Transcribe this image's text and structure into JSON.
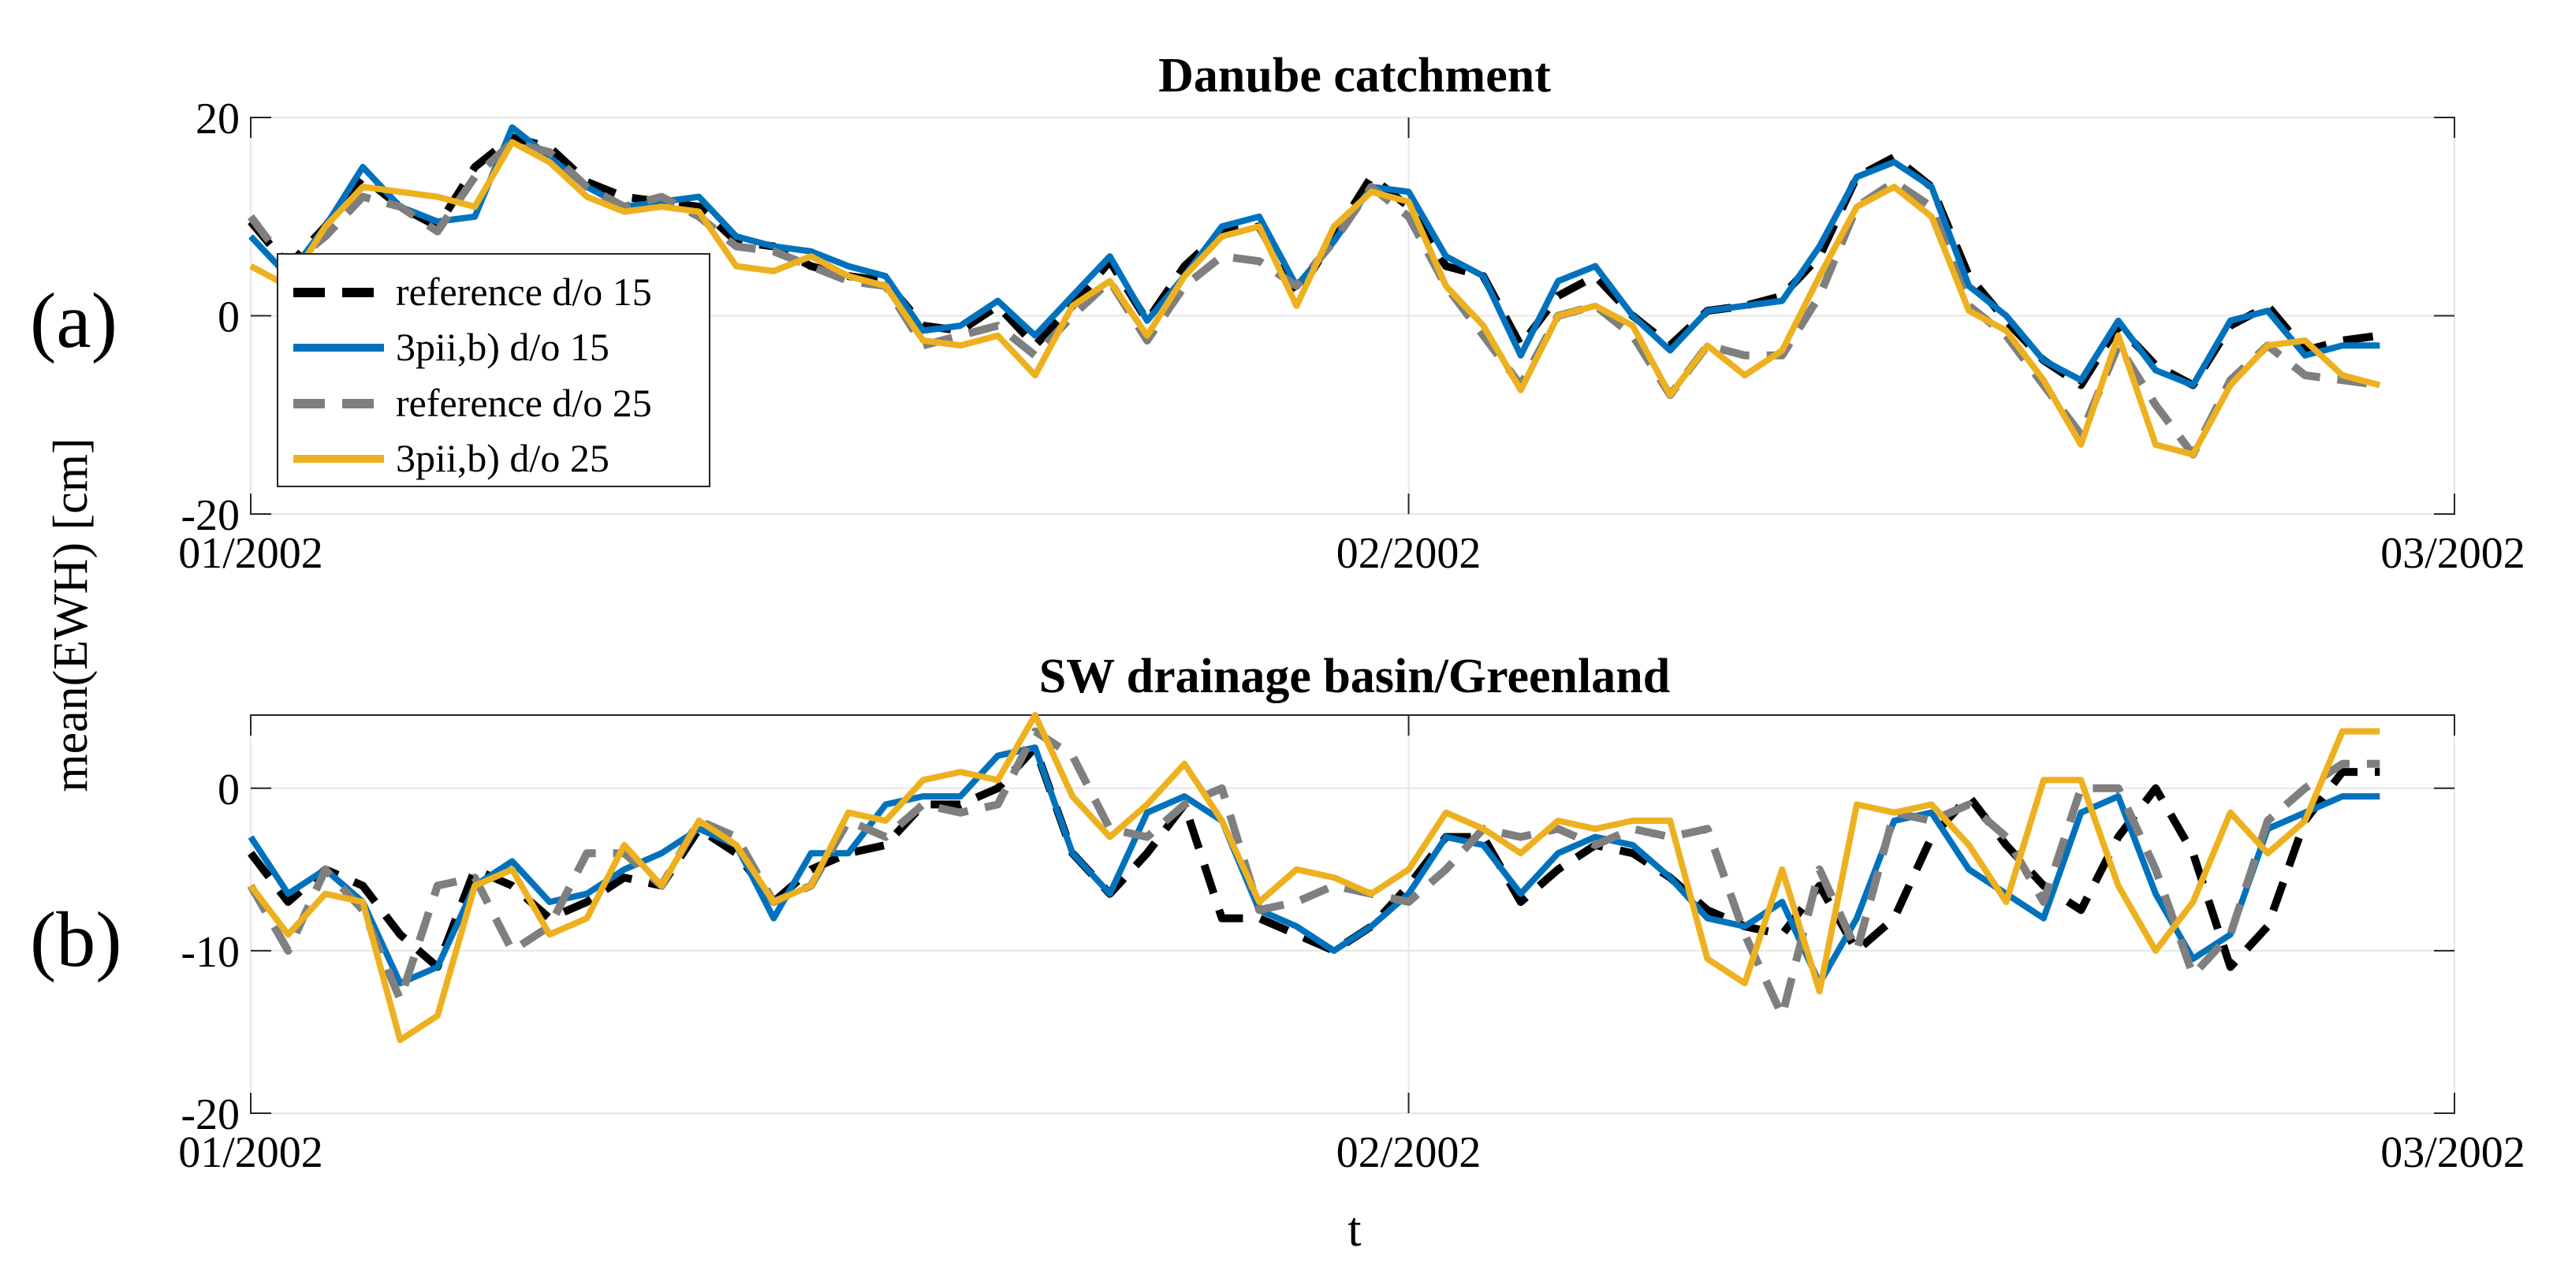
{
  "chart_data": [
    {
      "type": "line",
      "panel_label": "(a)",
      "title": "Danube catchment",
      "xlabel": "",
      "ylabel": "",
      "ylim": [
        -20,
        20
      ],
      "yticks": [
        -20,
        0,
        20
      ],
      "ytick_labels": [
        "-20",
        "0",
        "20"
      ],
      "x_range_days": [
        0,
        57
      ],
      "xticks_days": [
        0,
        31,
        59
      ],
      "xtick_labels": [
        "01/2002",
        "02/2002",
        "03/2002"
      ],
      "grid": true,
      "legend": {
        "position": "left",
        "entries": [
          "reference d/o 15",
          "3pii,b) d/o 15",
          "reference d/o 25",
          "3pii,b) d/o 25"
        ]
      },
      "x": [
        0,
        1,
        2,
        3,
        4,
        5,
        6,
        7,
        8,
        9,
        10,
        11,
        12,
        13,
        14,
        15,
        16,
        17,
        18,
        19,
        20,
        21,
        22,
        23,
        24,
        25,
        26,
        27,
        28,
        29,
        30,
        31,
        32,
        33,
        34,
        35,
        36,
        37,
        38,
        39,
        40,
        41,
        42,
        43,
        44,
        45,
        46,
        47,
        48,
        49,
        50,
        51,
        52,
        53,
        54,
        55,
        56,
        57
      ],
      "series": [
        {
          "name": "reference d/o 15",
          "color": "#000000",
          "dash": true,
          "values": [
            9.5,
            5,
            9,
            14,
            11,
            9,
            15,
            18,
            17,
            13.5,
            12,
            11.5,
            11,
            7.5,
            7,
            5,
            4,
            3.5,
            -1,
            -1.5,
            1,
            -3,
            1,
            5.5,
            -0.5,
            5,
            8.5,
            9,
            2,
            8,
            14,
            11,
            5,
            4,
            -3,
            2,
            4,
            0,
            -3,
            0.5,
            1,
            2,
            6,
            14,
            16,
            13,
            4,
            -0.5,
            -4.5,
            -7,
            -1,
            -5,
            -7,
            -1,
            1,
            -3.5,
            -2.5,
            -2
          ]
        },
        {
          "name": "3pii,b) d/o 15",
          "color": "#0072BD",
          "dash": false,
          "values": [
            8,
            4,
            9,
            15,
            11,
            9.5,
            10,
            19,
            16,
            13,
            11,
            11.5,
            12,
            8,
            7,
            6.5,
            5,
            4,
            -1.5,
            -1,
            1.5,
            -2,
            2,
            6,
            -0.5,
            4,
            9,
            10,
            3,
            7.5,
            13,
            12.5,
            6,
            4,
            -4,
            3.5,
            5,
            0,
            -3.5,
            0.5,
            1,
            1.5,
            7,
            14,
            15.5,
            13,
            3,
            0,
            -4.5,
            -6.5,
            -0.5,
            -5.5,
            -7,
            -0.5,
            0.5,
            -4,
            -3,
            -3
          ]
        },
        {
          "name": "reference d/o 25",
          "color": "#7F7F7F",
          "dash": true,
          "values": [
            10,
            5,
            8,
            12,
            11,
            8.5,
            14,
            17.5,
            16.5,
            13,
            11,
            12,
            10,
            7,
            6.5,
            5,
            3.5,
            3,
            -3,
            -2,
            -1,
            -4,
            0,
            3.5,
            -2.5,
            3,
            6,
            5.5,
            3,
            7.5,
            13,
            10,
            3,
            -2,
            -7,
            0,
            1,
            -2,
            -8,
            -3,
            -4,
            -4,
            2,
            11,
            13.5,
            11,
            1,
            -2,
            -7,
            -12,
            -3,
            -9,
            -14,
            -6.5,
            -3,
            -6,
            -6.5,
            -7
          ]
        },
        {
          "name": "3pii,b) d/o 25",
          "color": "#EDB120",
          "dash": false,
          "values": [
            5,
            3,
            9,
            13,
            12.5,
            12,
            11,
            17.5,
            15.5,
            12,
            10.5,
            11,
            10.5,
            5,
            4.5,
            6,
            4,
            3,
            -2.5,
            -3,
            -2,
            -6,
            1,
            3.5,
            -2,
            4,
            8,
            9,
            1,
            9,
            12.5,
            11.5,
            3,
            -1,
            -7.5,
            0,
            1,
            -1,
            -8,
            -3,
            -6,
            -3.5,
            4,
            11,
            13,
            10,
            0.5,
            -1.5,
            -6.5,
            -13,
            -2,
            -13,
            -14,
            -7,
            -3,
            -2.5,
            -6,
            -7
          ]
        }
      ]
    },
    {
      "type": "line",
      "panel_label": "(b)",
      "title": "SW drainage basin/Greenland",
      "xlabel": "t",
      "ylabel": "mean(EWH) [cm]",
      "ylim": [
        -20,
        4.5
      ],
      "yticks": [
        -20,
        -10,
        0
      ],
      "ytick_labels": [
        "-20",
        "-10",
        "0"
      ],
      "x_range_days": [
        0,
        57
      ],
      "xticks_days": [
        0,
        31,
        59
      ],
      "xtick_labels": [
        "01/2002",
        "02/2002",
        "03/2002"
      ],
      "grid": true,
      "x": [
        0,
        1,
        2,
        3,
        4,
        5,
        6,
        7,
        8,
        9,
        10,
        11,
        12,
        13,
        14,
        15,
        16,
        17,
        18,
        19,
        20,
        21,
        22,
        23,
        24,
        25,
        26,
        27,
        28,
        29,
        30,
        31,
        32,
        33,
        34,
        35,
        36,
        37,
        38,
        39,
        40,
        41,
        42,
        43,
        44,
        45,
        46,
        47,
        48,
        49,
        50,
        51,
        52,
        53,
        54,
        55,
        56,
        57
      ],
      "series": [
        {
          "name": "reference d/o 15",
          "color": "#000000",
          "dash": true,
          "values": [
            -4,
            -7,
            -5,
            -6,
            -9,
            -11,
            -5,
            -6,
            -8,
            -7,
            -5.5,
            -6,
            -2.5,
            -4,
            -7,
            -5,
            -4,
            -3.5,
            -1,
            -1,
            0,
            2.5,
            -4,
            -6.5,
            -4,
            -1,
            -8,
            -8,
            -9,
            -10,
            -8.5,
            -6,
            -3,
            -3,
            -7,
            -5,
            -3.5,
            -4,
            -5.5,
            -7.5,
            -8.5,
            -9,
            -6,
            -10,
            -8,
            -3,
            -0.5,
            -3.5,
            -6,
            -7.5,
            -3,
            0,
            -4,
            -11,
            -8.5,
            -2,
            1,
            1
          ]
        },
        {
          "name": "3pii,b) d/o 15",
          "color": "#0072BD",
          "dash": false,
          "values": [
            -3,
            -6.5,
            -5,
            -7,
            -12,
            -11,
            -6,
            -4.5,
            -7,
            -6.5,
            -5,
            -4,
            -2.5,
            -3.5,
            -8,
            -4,
            -4,
            -1,
            -0.5,
            -0.5,
            2,
            2.5,
            -4,
            -6.5,
            -1.5,
            -0.5,
            -2,
            -7.5,
            -8.5,
            -10,
            -8.5,
            -6.5,
            -3,
            -3.5,
            -6.5,
            -4,
            -3,
            -3.5,
            -5.5,
            -8,
            -8.5,
            -7,
            -12,
            -8,
            -2,
            -1.5,
            -5,
            -6.5,
            -8,
            -1.5,
            -0.5,
            -6.5,
            -10.5,
            -9,
            -2.5,
            -1.5,
            -0.5,
            -0.5
          ]
        },
        {
          "name": "reference d/o 25",
          "color": "#7F7F7F",
          "dash": true,
          "values": [
            -6,
            -10,
            -5,
            -7.5,
            -13,
            -6,
            -5.5,
            -10,
            -8.5,
            -4,
            -4,
            -6,
            -2,
            -3,
            -7,
            -6,
            -2,
            -3,
            -1,
            -1.5,
            -1,
            3.5,
            2,
            -2.5,
            -3,
            -1,
            0,
            -7.5,
            -7,
            -6,
            -6.5,
            -7,
            -5,
            -2.5,
            -3,
            -2.5,
            -3.5,
            -2.5,
            -3,
            -2.5,
            -9,
            -14,
            -5,
            -10,
            -1.5,
            -2,
            -1,
            -3,
            -7,
            0,
            0,
            -5,
            -11.5,
            -9,
            -2,
            0,
            1.5,
            1.5
          ]
        },
        {
          "name": "3pii,b) d/o 25",
          "color": "#EDB120",
          "dash": false,
          "values": [
            -6,
            -9,
            -6.5,
            -7,
            -15.5,
            -14,
            -6,
            -5,
            -9,
            -8,
            -3.5,
            -6,
            -2,
            -3.5,
            -7,
            -6,
            -1.5,
            -2,
            0.5,
            1,
            0.5,
            4.5,
            -0.5,
            -3,
            -1,
            1.5,
            -2,
            -7,
            -5,
            -5.5,
            -6.5,
            -5,
            -1.5,
            -2.5,
            -4,
            -2,
            -2.5,
            -2,
            -2,
            -10.5,
            -12,
            -5,
            -12.5,
            -1,
            -1.5,
            -1,
            -3.5,
            -7,
            0.5,
            0.5,
            -6,
            -10,
            -7,
            -1.5,
            -4,
            -2,
            3.5,
            3.5
          ]
        }
      ]
    }
  ]
}
